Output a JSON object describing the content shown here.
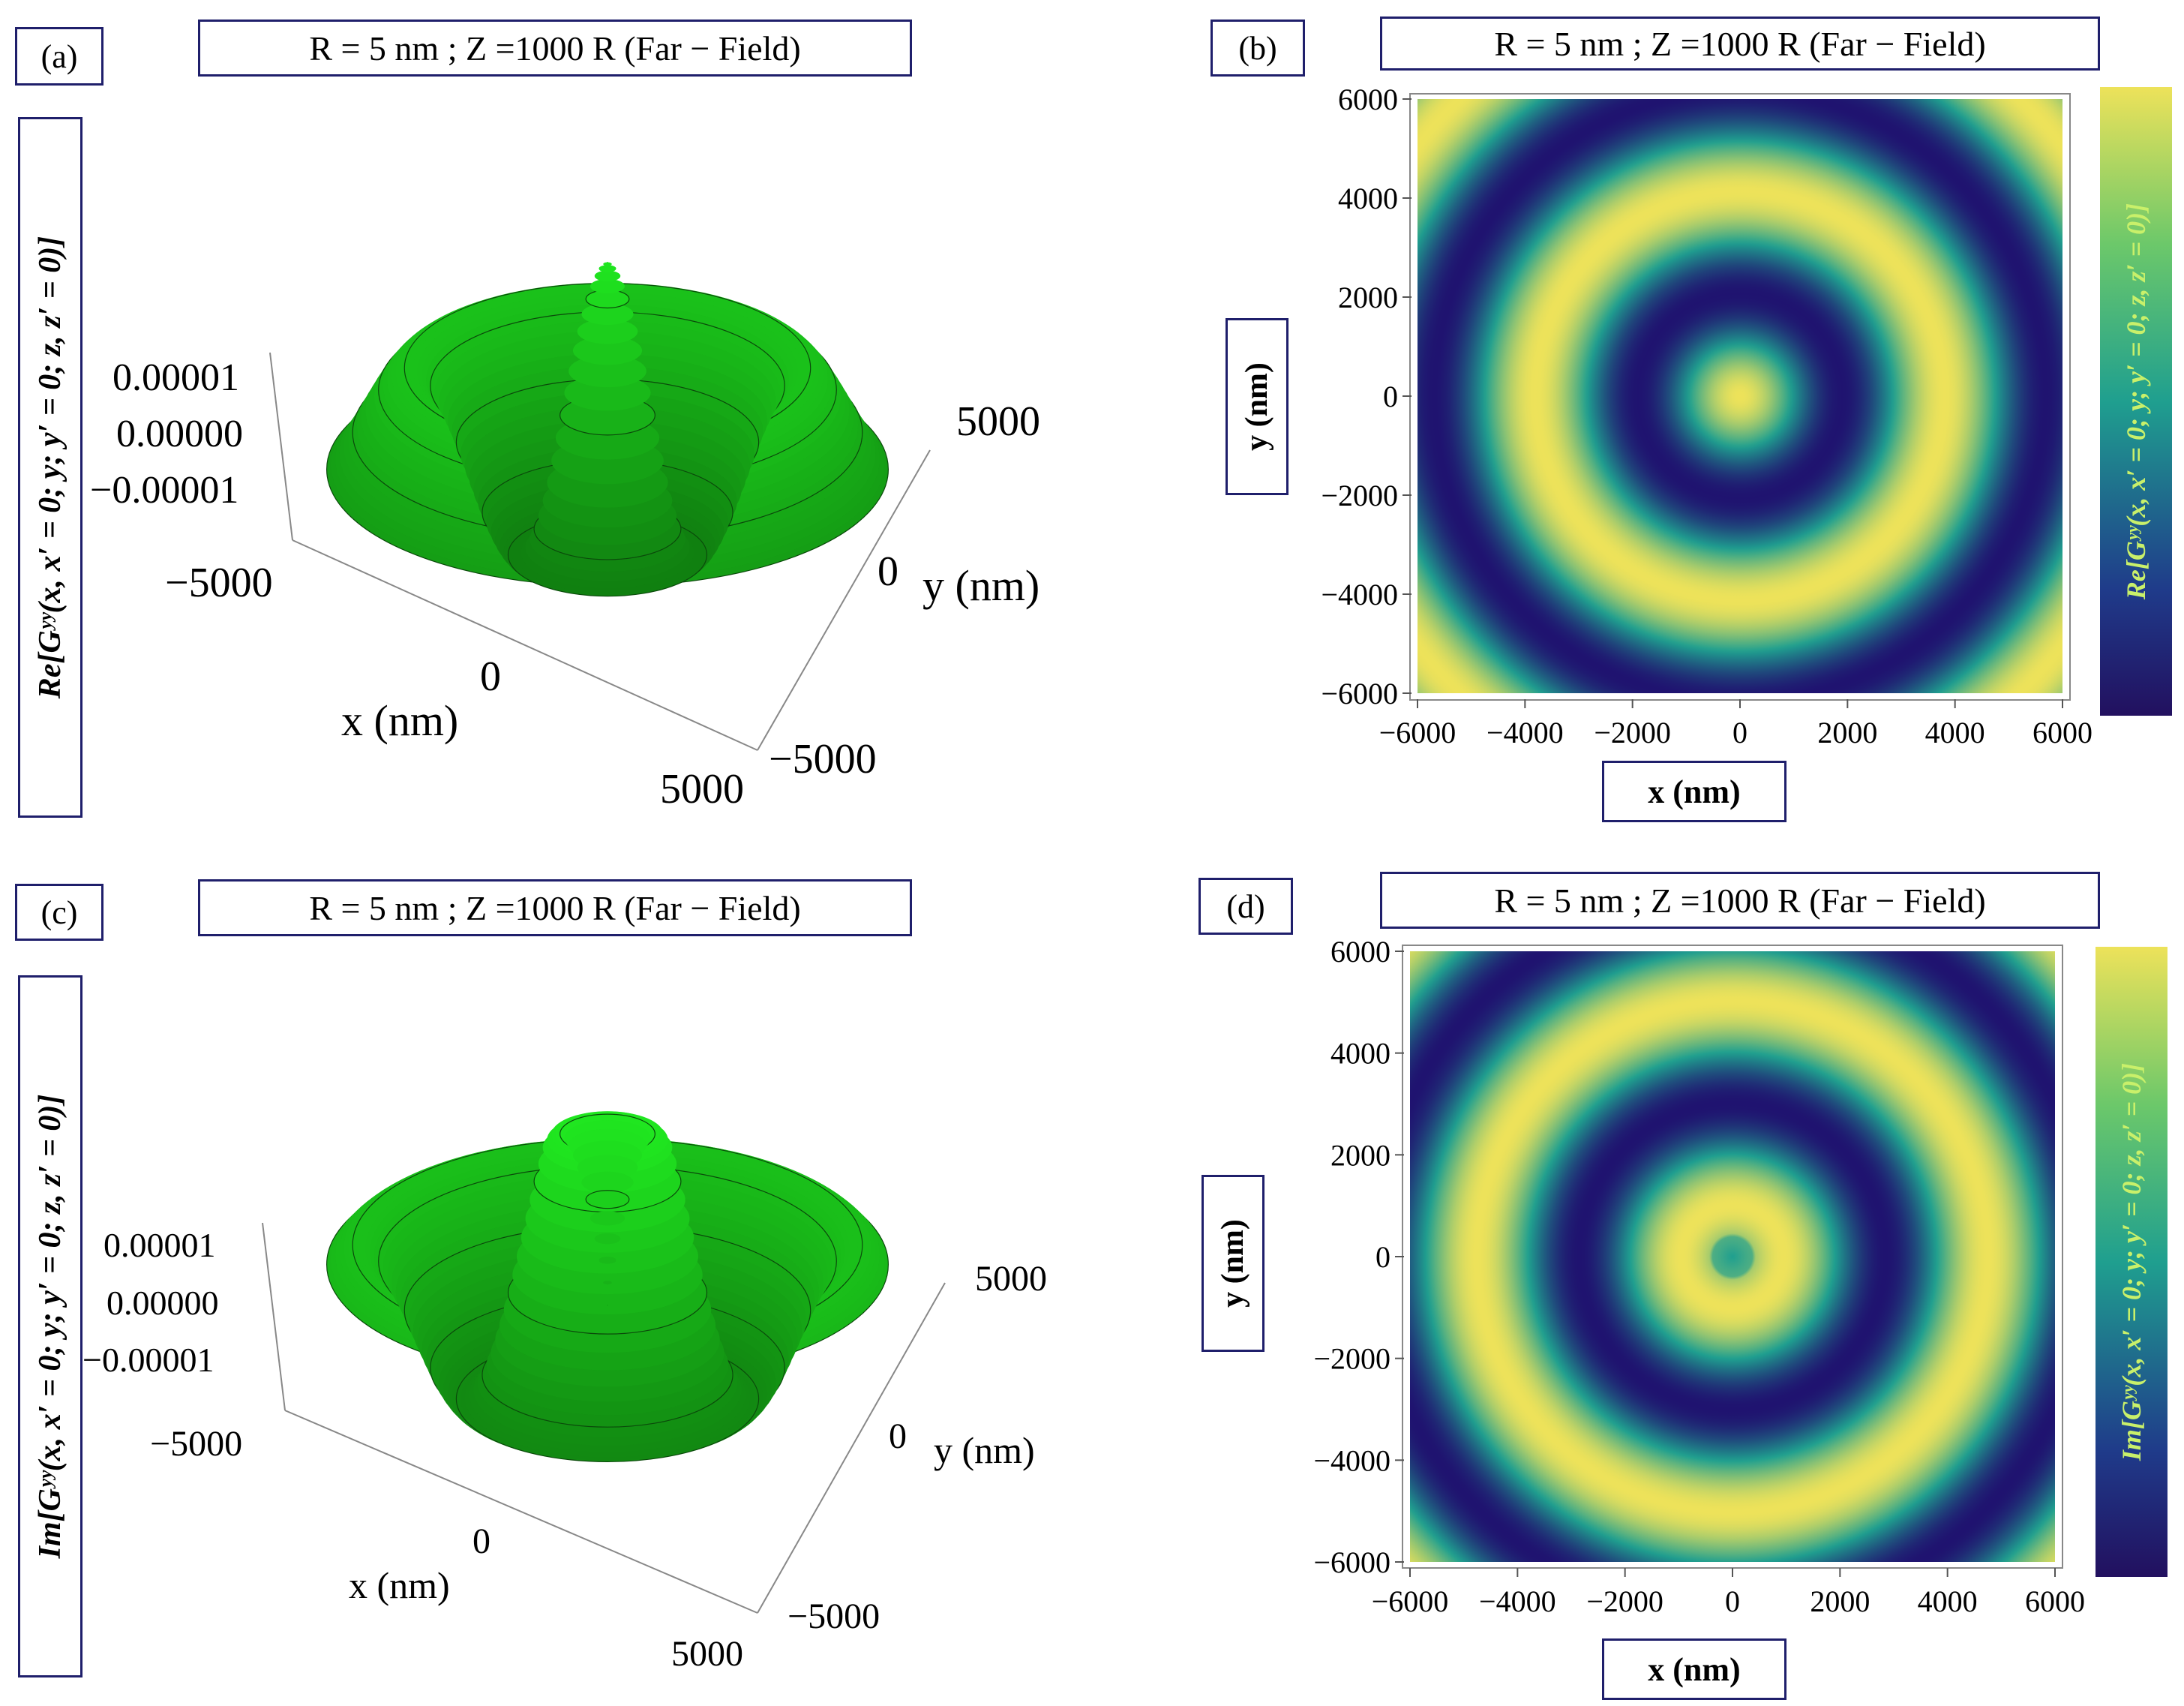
{
  "panels": {
    "a": {
      "label": "(a)",
      "title": "R = 5 nm ; Z =1000 R (Far − Field)",
      "zlabel": "Re[Gʸʸ(x, x′ = 0; y; y′ = 0; z, z′ = 0)]",
      "zticks": [
        "0.00001",
        "0.00000",
        "−0.00001"
      ],
      "xlabel": "x (nm)",
      "ylabel": "y (nm)",
      "xticks": [
        "−5000",
        "0",
        "5000"
      ],
      "yticks": [
        "5000",
        "0",
        "−5000"
      ]
    },
    "b": {
      "label": "(b)",
      "title": "R = 5 nm ; Z =1000 R (Far − Field)",
      "ylabel": "y (nm)",
      "xlabel": "x (nm)",
      "colorbar_label": "Re[Gʸʸ(x, x′ = 0; y; y′ = 0; z, z′ = 0)]",
      "xticks": [
        "−6000",
        "−4000",
        "−2000",
        "0",
        "2000",
        "4000",
        "6000"
      ],
      "yticks": [
        "6000",
        "4000",
        "2000",
        "0",
        "−2000",
        "−4000",
        "−6000"
      ]
    },
    "c": {
      "label": "(c)",
      "title": "R = 5 nm ; Z =1000 R (Far − Field)",
      "zlabel": "Im[Gʸʸ(x, x′ = 0; y; y′ = 0; z, z′ = 0)]",
      "zticks": [
        "0.00001",
        "0.00000",
        "−0.00001"
      ],
      "xlabel": "x (nm)",
      "ylabel": "y (nm)",
      "xticks": [
        "−5000",
        "0",
        "5000"
      ],
      "yticks": [
        "5000",
        "0",
        "−5000"
      ]
    },
    "d": {
      "label": "(d)",
      "title": "R = 5 nm ; Z =1000 R (Far − Field)",
      "ylabel": "y (nm)",
      "xlabel": "x (nm)",
      "colorbar_label": "Im[Gʸʸ(x, x′ = 0; y; y′ = 0; z, z′ = 0)]",
      "xticks": [
        "−6000",
        "−4000",
        "−2000",
        "0",
        "2000",
        "4000",
        "6000"
      ],
      "yticks": [
        "6000",
        "4000",
        "2000",
        "0",
        "−2000",
        "−4000",
        "−6000"
      ]
    }
  },
  "colors": {
    "surface": "#2fc82f",
    "surface_dark": "#0e6a0e",
    "cmap_low": "#1f1370",
    "cmap_mid": "#1f9f8f",
    "cmap_high": "#ede25a",
    "frame": "#1f1f6b"
  },
  "chart_data": [
    {
      "panel": "a",
      "type": "surface3d",
      "function": "Re[Gyy] radially symmetric, concentric oscillating rings",
      "x_range": [
        -5000,
        5000
      ],
      "y_range": [
        -5000,
        5000
      ],
      "z_range": [
        -1e-05,
        1e-05
      ],
      "ring_period_nm": 1900,
      "center_value": "maximum"
    },
    {
      "panel": "b",
      "type": "heatmap",
      "x_range": [
        -6000,
        6000
      ],
      "y_range": [
        -6000,
        6000
      ],
      "ring_period_nm": 1900,
      "center_value": "high",
      "first_minimum_radius_nm": 1900
    },
    {
      "panel": "c",
      "type": "surface3d",
      "function": "Im[Gyy] radially symmetric, concentric oscillating rings",
      "x_range": [
        -5000,
        5000
      ],
      "y_range": [
        -5000,
        5000
      ],
      "z_range": [
        -1e-05,
        1e-05
      ],
      "ring_period_nm": 1900,
      "center_value": "mid (local dip)"
    },
    {
      "panel": "d",
      "type": "heatmap",
      "x_range": [
        -6000,
        6000
      ],
      "y_range": [
        -6000,
        6000
      ],
      "ring_period_nm": 1900,
      "center_value": "mid",
      "first_maximum_radius_nm": 1000
    }
  ]
}
